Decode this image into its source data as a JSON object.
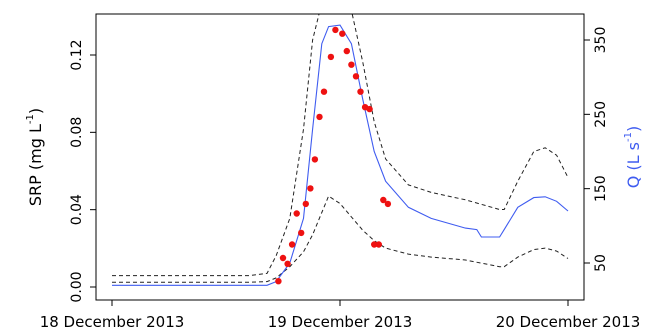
{
  "chart_data": {
    "type": "line",
    "title": "",
    "xlabel": "",
    "x_tick_labels": [
      "18 December 2013",
      "19 December 2013",
      "20 December 2013"
    ],
    "x_range_days": [
      18.0,
      20.0
    ],
    "ylabel_left": {
      "base": "SRP (mg L",
      "sup": "-1",
      "close": ")"
    },
    "ylabel_right": {
      "base": "Q (L s",
      "sup": "-1",
      "close": ")"
    },
    "y_left_ticks": [
      "0.00",
      "0.04",
      "0.08",
      "0.12"
    ],
    "y_left_range": [
      0.0,
      0.13
    ],
    "y_right_ticks": [
      "50",
      "150",
      "250",
      "350"
    ],
    "y_right_range": [
      15,
      375
    ],
    "colors": {
      "discharge": "#3f5cf0",
      "srp_points": "#ee1111",
      "interval": "#222222",
      "axis": "#000000"
    },
    "series": [
      {
        "style": "dashed-black-upper",
        "axis": "right",
        "x": [
          18.0,
          18.5,
          18.6,
          18.68,
          18.72,
          18.78,
          18.84,
          18.88,
          18.92,
          18.95,
          19.0,
          19.05,
          19.1,
          19.15,
          19.2,
          19.3,
          19.4,
          19.55,
          19.7,
          19.72,
          19.78,
          19.85,
          19.9,
          19.95,
          20.0
        ],
        "y": [
          33,
          33,
          33,
          36,
          60,
          110,
          230,
          350,
          400,
          400,
          400,
          390,
          320,
          240,
          190,
          155,
          145,
          135,
          122,
          122,
          160,
          200,
          205,
          195,
          165
        ]
      },
      {
        "style": "dashed-black-lower",
        "axis": "right",
        "x": [
          18.0,
          18.5,
          18.6,
          18.68,
          18.72,
          18.78,
          18.84,
          18.88,
          18.92,
          18.95,
          19.0,
          19.05,
          19.1,
          19.15,
          19.2,
          19.3,
          19.4,
          19.55,
          19.7,
          19.72,
          19.78,
          19.85,
          19.9,
          19.95,
          20.0
        ],
        "y": [
          24,
          24,
          24,
          25,
          30,
          45,
          65,
          88,
          118,
          140,
          130,
          112,
          94,
          80,
          70,
          62,
          58,
          54,
          45,
          45,
          58,
          68,
          70,
          66,
          56
        ]
      },
      {
        "name": "Q",
        "style": "solid-blue",
        "axis": "right",
        "x": [
          18.0,
          18.5,
          18.6,
          18.68,
          18.72,
          18.78,
          18.84,
          18.88,
          18.92,
          18.95,
          19.0,
          19.05,
          19.1,
          19.15,
          19.2,
          19.3,
          19.4,
          19.55,
          19.6,
          19.62,
          19.7,
          19.72,
          19.78,
          19.85,
          19.9,
          19.95,
          20.0
        ],
        "y": [
          20,
          20,
          20,
          20,
          25,
          50,
          110,
          230,
          345,
          368,
          370,
          345,
          270,
          200,
          160,
          125,
          110,
          97,
          95,
          85,
          85,
          95,
          125,
          138,
          139,
          133,
          120
        ]
      },
      {
        "name": "SRP",
        "style": "points-red",
        "axis": "left",
        "x": [
          18.73,
          18.75,
          18.77,
          18.79,
          18.81,
          18.83,
          18.85,
          18.87,
          18.89,
          18.91,
          18.93,
          18.96,
          18.98,
          19.01,
          19.03,
          19.05,
          19.07,
          19.09,
          19.11,
          19.13,
          19.15,
          19.17,
          19.19,
          19.21
        ],
        "y": [
          0.003,
          0.015,
          0.012,
          0.022,
          0.038,
          0.028,
          0.043,
          0.051,
          0.066,
          0.088,
          0.101,
          0.119,
          0.133,
          0.131,
          0.122,
          0.115,
          0.109,
          0.101,
          0.093,
          0.092,
          0.022,
          0.022,
          0.045,
          0.043
        ]
      }
    ],
    "grid": false,
    "legend": "none"
  }
}
